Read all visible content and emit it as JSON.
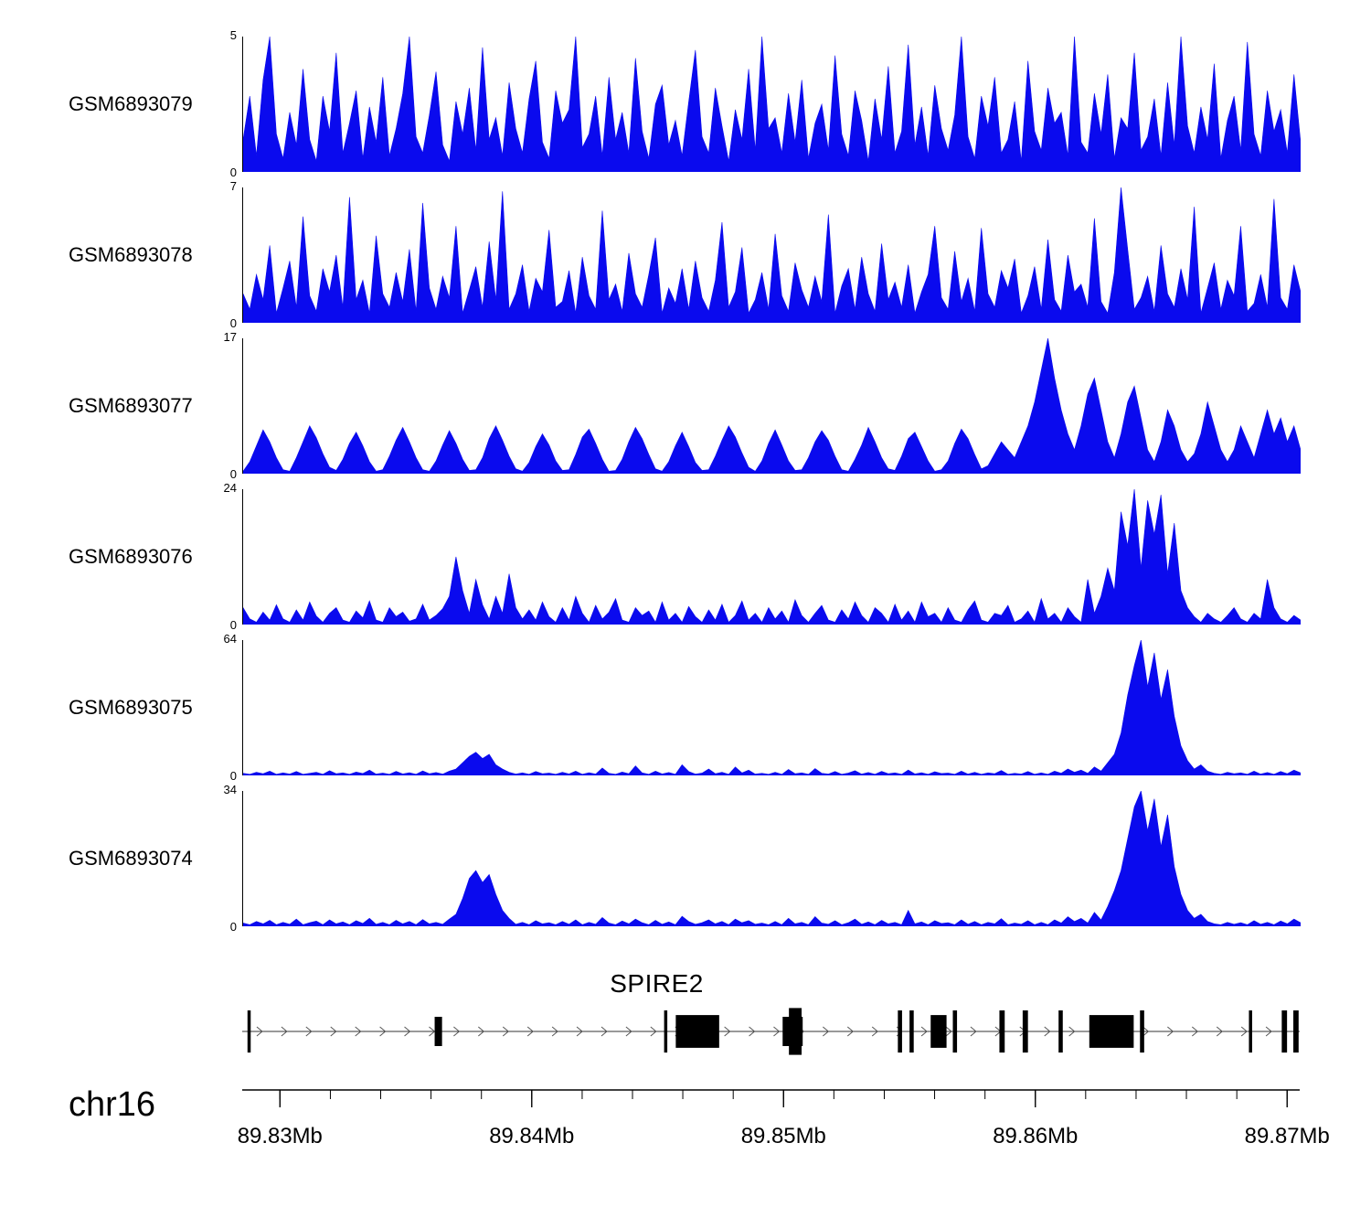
{
  "signal_color": "#0a0aee",
  "chart_data": {
    "type": "area",
    "title": "",
    "description_visible_elements": "genome coverage tracks",
    "region": {
      "chromosome": "chr16",
      "start_mb": 89.8285,
      "end_mb": 89.8705
    },
    "axis": {
      "chromosome_label": "chr16",
      "major_ticks_mb": [
        89.83,
        89.84,
        89.85,
        89.86,
        89.87
      ],
      "tick_labels": [
        "89.83Mb",
        "89.84Mb",
        "89.85Mb",
        "89.86Mb",
        "89.87Mb"
      ],
      "minor_tick_interval_mb": 0.002
    },
    "tracks": [
      {
        "label": "GSM6893079",
        "ymin": 0,
        "ymax": 5,
        "values": [
          1.2,
          2.8,
          0.6,
          3.4,
          5,
          1.4,
          0.5,
          2.2,
          1,
          3.8,
          1.2,
          0.4,
          2.8,
          1.5,
          4.4,
          0.7,
          1.8,
          3,
          0.5,
          2.4,
          1.1,
          3.5,
          0.6,
          1.6,
          2.9,
          5,
          1.3,
          0.7,
          2.1,
          3.7,
          1,
          0.4,
          2.6,
          1.4,
          3.1,
          0.8,
          4.6,
          1.2,
          2,
          0.6,
          3.3,
          1.6,
          0.7,
          2.7,
          4.1,
          1.1,
          0.5,
          3,
          1.8,
          2.3,
          5,
          0.9,
          1.4,
          2.8,
          0.6,
          3.5,
          1.2,
          2.2,
          0.7,
          4.2,
          1.5,
          0.5,
          2.5,
          3.2,
          1,
          1.9,
          0.6,
          2.6,
          4.5,
          1.3,
          0.7,
          3.1,
          1.7,
          0.4,
          2.3,
          1.2,
          3.8,
          0.8,
          5,
          1.6,
          2,
          0.7,
          2.9,
          1.1,
          3.4,
          0.5,
          1.8,
          2.5,
          0.8,
          4.3,
          1.4,
          0.6,
          3,
          1.9,
          0.4,
          2.7,
          1.2,
          3.9,
          0.7,
          1.5,
          4.7,
          1,
          2.4,
          0.6,
          3.2,
          1.6,
          0.8,
          2.1,
          5,
          1.3,
          0.5,
          2.8,
          1.7,
          3.5,
          0.7,
          1.2,
          2.6,
          0.4,
          4.1,
          1.5,
          0.8,
          3.1,
          1.8,
          2.2,
          0.6,
          5,
          1.1,
          0.7,
          2.9,
          1.4,
          3.6,
          0.5,
          2,
          1.6,
          4.4,
          0.8,
          1.3,
          2.7,
          0.6,
          3.3,
          1,
          5,
          1.7,
          0.7,
          2.4,
          1.2,
          4,
          0.5,
          1.9,
          2.8,
          0.8,
          4.8,
          1.4,
          0.6,
          3,
          1.5,
          2.3,
          0.7,
          3.6,
          1.1
        ]
      },
      {
        "label": "GSM6893078",
        "ymin": 0,
        "ymax": 7,
        "values": [
          1.5,
          0.7,
          2.5,
          1.2,
          4,
          0.5,
          1.8,
          3.2,
          0.8,
          5.5,
          1.4,
          0.6,
          2.8,
          1.6,
          3.5,
          0.8,
          6.5,
          1.2,
          2.2,
          0.5,
          4.5,
          1.5,
          0.8,
          2.6,
          1.1,
          3.8,
          0.6,
          6.2,
          1.8,
          0.7,
          2.4,
          1.3,
          5,
          0.5,
          1.7,
          2.9,
          0.8,
          4.2,
          1.2,
          6.8,
          0.7,
          1.5,
          3,
          0.6,
          2.3,
          1.6,
          4.8,
          0.8,
          1.1,
          2.7,
          0.5,
          3.4,
          1.4,
          0.7,
          5.8,
          1.2,
          2,
          0.6,
          3.6,
          1.5,
          0.8,
          2.5,
          4.4,
          0.5,
          1.8,
          1,
          2.8,
          0.7,
          3.2,
          1.3,
          0.6,
          2.2,
          5.2,
          0.8,
          1.6,
          3.9,
          0.5,
          1.2,
          2.6,
          0.7,
          4.6,
          1.4,
          0.6,
          3.1,
          1.7,
          0.8,
          2.4,
          1.1,
          5.6,
          0.5,
          1.9,
          2.8,
          0.7,
          3.4,
          1.5,
          0.6,
          4.1,
          1.2,
          2.1,
          0.8,
          3,
          0.5,
          1.6,
          2.5,
          5,
          1.3,
          0.7,
          3.7,
          1.1,
          2.3,
          0.6,
          4.9,
          1.5,
          0.8,
          2.7,
          1.8,
          3.3,
          0.5,
          1.4,
          2.9,
          0.7,
          4.3,
          1.2,
          0.6,
          3.5,
          1.6,
          2,
          0.8,
          5.4,
          1.1,
          0.5,
          2.6,
          7,
          3.8,
          0.7,
          1.3,
          2.4,
          0.6,
          4,
          1.5,
          0.8,
          2.8,
          1.2,
          6,
          0.5,
          1.8,
          3.1,
          0.7,
          2.2,
          1.4,
          5,
          0.6,
          1,
          2.5,
          0.8,
          6.4,
          1.3,
          0.7,
          3,
          1.6
        ]
      },
      {
        "label": "GSM6893077",
        "ymin": 0,
        "ymax": 17,
        "values": [
          0.3,
          1.5,
          3.5,
          5.5,
          4,
          2,
          0.5,
          0.3,
          2,
          4,
          6,
          4.5,
          2.5,
          0.8,
          0.4,
          1.8,
          3.8,
          5.2,
          3.5,
          1.5,
          0.3,
          0.5,
          2.2,
          4.2,
          5.8,
          4,
          2,
          0.5,
          0.3,
          1.6,
          3.6,
          5.4,
          3.8,
          1.8,
          0.4,
          0.5,
          2,
          4.4,
          6,
          4.2,
          2.2,
          0.6,
          0.3,
          1.4,
          3.4,
          5,
          3.6,
          1.6,
          0.4,
          0.5,
          2.4,
          4.6,
          5.6,
          3.8,
          1.8,
          0.3,
          0.4,
          1.8,
          4,
          5.8,
          4.4,
          2.4,
          0.6,
          0.3,
          1.5,
          3.5,
          5.2,
          3.4,
          1.4,
          0.4,
          0.5,
          2.2,
          4.2,
          6,
          4.6,
          2.6,
          0.8,
          0.3,
          1.6,
          3.8,
          5.5,
          3.6,
          1.6,
          0.4,
          0.5,
          2,
          4,
          5.4,
          4.2,
          2.2,
          0.5,
          0.3,
          1.8,
          3.6,
          5.8,
          4,
          2,
          0.6,
          0.4,
          2.2,
          4.4,
          5.2,
          3.4,
          1.6,
          0.3,
          0.5,
          1.6,
          3.8,
          5.6,
          4.4,
          2.4,
          0.6,
          1,
          2.5,
          4,
          3,
          2,
          4,
          6,
          9,
          13,
          17,
          12,
          8,
          5,
          3,
          6,
          10,
          12,
          8,
          4,
          2,
          5,
          9,
          11,
          7,
          3,
          1.5,
          4,
          8,
          6,
          3,
          1.5,
          2.5,
          5,
          9,
          6,
          3,
          1.5,
          3,
          6,
          4,
          2,
          5,
          8,
          5,
          7,
          4,
          6,
          3
        ]
      },
      {
        "label": "GSM6893076",
        "ymin": 0,
        "ymax": 24,
        "values": [
          3,
          1,
          0.4,
          2.2,
          0.8,
          3.5,
          1,
          0.4,
          2.6,
          0.8,
          4,
          1.5,
          0.4,
          2,
          3,
          0.8,
          0.4,
          2.4,
          1.2,
          4.2,
          0.8,
          0.4,
          3,
          1.4,
          2.2,
          0.6,
          1,
          3.6,
          0.8,
          1.6,
          2.8,
          5,
          12,
          6,
          2,
          8,
          3.5,
          1,
          5,
          2,
          9,
          3,
          1,
          2.6,
          0.8,
          4,
          1.4,
          0.4,
          3,
          0.8,
          5,
          2,
          0.4,
          3.4,
          1,
          2.2,
          4.6,
          0.8,
          0.4,
          3,
          1.6,
          2.4,
          0.4,
          4,
          0.8,
          2,
          0.4,
          3.2,
          1.4,
          0.4,
          2.6,
          0.8,
          3.6,
          0.4,
          1.6,
          4.2,
          0.8,
          2,
          0.4,
          3,
          1,
          2.4,
          0.4,
          4.4,
          1.6,
          0.4,
          2,
          3.4,
          0.8,
          0.4,
          2.6,
          1,
          4,
          1.6,
          0.4,
          3,
          2,
          0.4,
          3.6,
          0.8,
          2.4,
          0.4,
          4,
          1.4,
          2,
          0.4,
          3,
          0.8,
          0.4,
          2.6,
          4.2,
          0.8,
          0.4,
          2,
          1.6,
          3.4,
          0.4,
          1,
          2.4,
          0.4,
          4.6,
          1,
          2,
          0.4,
          3,
          1.4,
          0.4,
          8,
          2,
          5,
          10,
          6,
          20,
          14,
          24,
          10,
          22,
          16,
          23,
          9,
          18,
          6,
          3,
          1.4,
          0.4,
          2,
          1,
          0.4,
          1.6,
          3,
          1,
          0.4,
          2,
          1,
          8,
          3,
          1,
          0.4,
          1.6,
          0.8
        ]
      },
      {
        "label": "GSM6893075",
        "ymin": 0,
        "ymax": 64,
        "values": [
          1,
          0.5,
          1.5,
          0.8,
          2,
          0.5,
          1.2,
          0.6,
          1.8,
          0.5,
          1,
          1.5,
          0.5,
          2.2,
          0.8,
          1.2,
          0.5,
          1.6,
          0.9,
          2.5,
          0.6,
          1.1,
          0.5,
          1.9,
          0.7,
          1.3,
          0.5,
          2.1,
          0.8,
          1.4,
          0.6,
          2,
          3,
          6,
          9,
          11,
          8,
          10,
          5,
          3,
          1.5,
          0.6,
          1.2,
          0.5,
          1.8,
          0.8,
          1.1,
          0.5,
          1.5,
          0.7,
          2,
          0.5,
          1.3,
          0.6,
          3.5,
          1,
          0.5,
          1.6,
          0.8,
          4.5,
          1.2,
          0.5,
          2,
          0.7,
          1.4,
          0.5,
          5,
          1.8,
          0.6,
          1.1,
          3,
          0.8,
          1.5,
          0.5,
          4,
          1.2,
          2.5,
          0.6,
          1,
          0.5,
          1.5,
          0.5,
          2.8,
          0.8,
          1.2,
          0.5,
          3.2,
          1,
          0.6,
          1.8,
          0.5,
          1.1,
          2.2,
          0.6,
          1.4,
          0.5,
          1.9,
          0.8,
          1.2,
          0.5,
          2.5,
          0.7,
          1.3,
          0.5,
          1.7,
          0.9,
          1.1,
          0.5,
          2,
          0.6,
          1.5,
          0.5,
          1.2,
          0.8,
          2.3,
          0.5,
          1,
          0.6,
          1.8,
          0.5,
          1.2,
          0.5,
          2,
          1,
          3,
          1.5,
          2.5,
          1,
          4,
          2,
          6,
          10,
          20,
          38,
          52,
          64,
          42,
          58,
          36,
          50,
          28,
          14,
          7,
          3,
          5,
          2,
          1,
          0.5,
          1.5,
          0.8,
          1.2,
          0.5,
          2,
          0.6,
          1.4,
          0.5,
          1.8,
          0.8,
          2.5,
          1.2
        ]
      },
      {
        "label": "GSM6893074",
        "ymin": 0,
        "ymax": 34,
        "values": [
          0.8,
          0.4,
          1.2,
          0.6,
          1.5,
          0.4,
          1,
          0.5,
          1.8,
          0.4,
          0.9,
          1.3,
          0.4,
          1.6,
          0.6,
          1.1,
          0.4,
          1.4,
          0.7,
          2,
          0.5,
          1,
          0.4,
          1.5,
          0.6,
          1.2,
          0.4,
          1.7,
          0.6,
          1,
          0.5,
          1.8,
          3,
          7,
          12,
          14,
          11,
          13,
          8,
          4,
          2,
          0.5,
          1,
          0.4,
          1.4,
          0.6,
          0.9,
          0.4,
          1.2,
          0.5,
          1.6,
          0.4,
          1,
          0.5,
          2.2,
          0.8,
          0.4,
          1.3,
          0.6,
          1.8,
          0.9,
          0.4,
          1.5,
          0.5,
          1.1,
          0.4,
          2.5,
          1.2,
          0.5,
          0.9,
          1.6,
          0.6,
          1.2,
          0.4,
          1.8,
          0.9,
          1.4,
          0.5,
          0.8,
          0.4,
          1.2,
          0.4,
          2,
          0.6,
          1,
          0.4,
          2.4,
          0.8,
          0.5,
          1.4,
          0.4,
          0.9,
          1.8,
          0.5,
          1.1,
          0.4,
          1.5,
          0.6,
          1,
          0.4,
          4,
          0.6,
          1.1,
          0.4,
          1.4,
          0.7,
          0.9,
          0.4,
          1.6,
          0.5,
          1.2,
          0.4,
          1,
          0.6,
          1.9,
          0.4,
          0.8,
          0.5,
          1.4,
          0.4,
          1,
          0.4,
          1.6,
          0.8,
          2.4,
          1.2,
          2,
          0.8,
          3.5,
          1.6,
          5,
          9,
          14,
          22,
          30,
          34,
          24,
          32,
          20,
          28,
          15,
          8,
          4,
          2,
          3,
          1.2,
          0.6,
          0.4,
          1,
          0.5,
          0.9,
          0.4,
          1.4,
          0.5,
          1,
          0.4,
          1.3,
          0.6,
          1.8,
          0.9
        ]
      }
    ],
    "gene_track": {
      "gene_name": "SPIRE2",
      "strand_direction": "right",
      "label_x": 0.392,
      "exons": [
        {
          "x": 0.005,
          "w": 0.003,
          "h": 0.72
        },
        {
          "x": 0.182,
          "w": 0.007,
          "h": 0.5
        },
        {
          "x": 0.399,
          "w": 0.003,
          "h": 0.72
        },
        {
          "x": 0.41,
          "w": 0.041,
          "h": 0.56
        },
        {
          "x": 0.511,
          "w": 0.019,
          "h": 0.5
        },
        {
          "x": 0.517,
          "w": 0.012,
          "h": 0.8
        },
        {
          "x": 0.62,
          "w": 0.004,
          "h": 0.72
        },
        {
          "x": 0.631,
          "w": 0.004,
          "h": 0.72
        },
        {
          "x": 0.651,
          "w": 0.015,
          "h": 0.56
        },
        {
          "x": 0.672,
          "w": 0.004,
          "h": 0.72
        },
        {
          "x": 0.716,
          "w": 0.005,
          "h": 0.72
        },
        {
          "x": 0.738,
          "w": 0.005,
          "h": 0.72
        },
        {
          "x": 0.772,
          "w": 0.004,
          "h": 0.72
        },
        {
          "x": 0.801,
          "w": 0.042,
          "h": 0.56
        },
        {
          "x": 0.849,
          "w": 0.004,
          "h": 0.72
        },
        {
          "x": 0.952,
          "w": 0.003,
          "h": 0.72
        },
        {
          "x": 0.983,
          "w": 0.005,
          "h": 0.72
        },
        {
          "x": 0.994,
          "w": 0.005,
          "h": 0.72
        }
      ]
    }
  }
}
